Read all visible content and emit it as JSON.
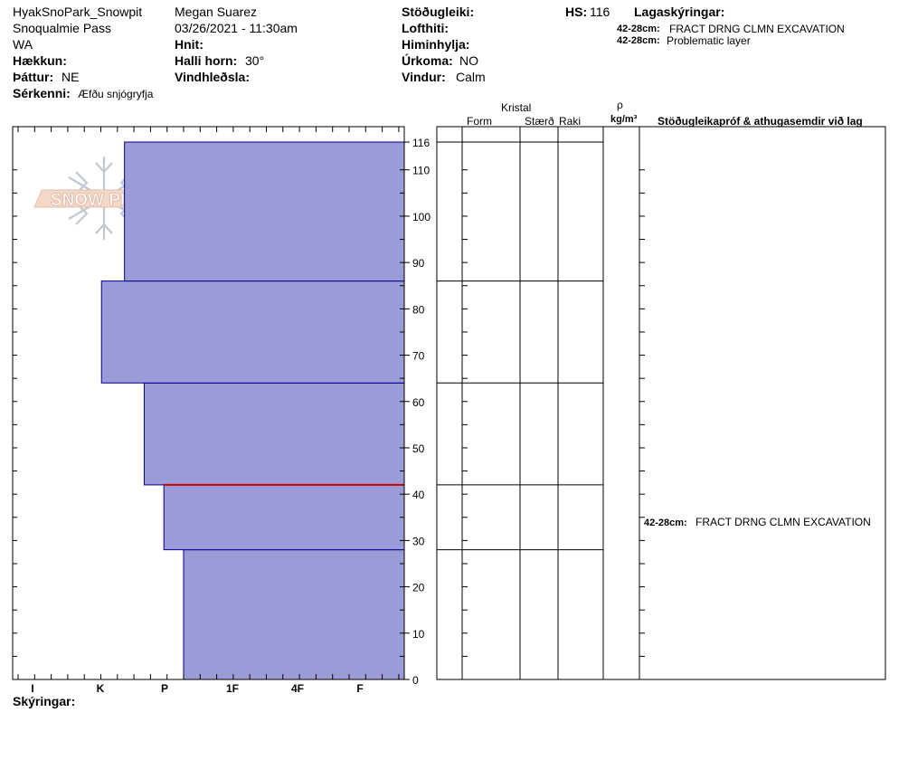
{
  "header": {
    "col1": [
      "HyakSnoPark_Snowpit",
      "Snoqualmie Pass",
      "WA"
    ],
    "elevation_label": "Hækkun:",
    "aspect_label": "Þáttur:",
    "aspect_value": "NE",
    "specifics_label": "Sérkenni:",
    "specifics_value": "Æfðu snjógryfja",
    "observer": "Megan Suarez",
    "datetime": "03/26/2021 - 11:30am",
    "coords_label": "Hnit:",
    "slope_label": "Halli horn:",
    "slope_value": "30°",
    "wind_loading_label": "Vindhleðsla:",
    "stability_label": "Stöðugleiki:",
    "air_temp_label": "Lofthiti:",
    "sky_label": "Himinhylja:",
    "precip_label": "Úrkoma:",
    "precip_value": "NO",
    "wind_label": "Vindur:",
    "wind_value": "Calm",
    "hs_label": "HS:",
    "hs_value": "116",
    "layer_notes_label": "Lagaskýringar:",
    "layer_notes": [
      {
        "range": "42-28cm:",
        "text": "FRACT DRNG CLMN EXCAVATION"
      },
      {
        "range": "42-28cm:",
        "text": "Problematic layer"
      }
    ]
  },
  "logo": {
    "text": "SNOW PILOT"
  },
  "columns": {
    "crystal": "Kristal",
    "form": "Form",
    "size": "Stærð",
    "moisture": "Raki",
    "rho": "ρ",
    "density_unit": "kg/m³",
    "tests": "Stöðugleikapróf & athugasemdir við lag"
  },
  "test_annotation": {
    "range": "42-28cm:",
    "text": "FRACT DRNG CLMN EXCAVATION"
  },
  "footer": {
    "notes_label": "Skýringar:"
  },
  "colors": {
    "layer_fill": "#9b9bd7",
    "layer_stroke": "#00008b",
    "problem_line": "#cc0000"
  },
  "chart_data": {
    "type": "bar",
    "orientation": "horizontal",
    "xlabel": "",
    "ylabel": "",
    "hardness_categories": [
      "I",
      "K",
      "P",
      "1F",
      "4F",
      "F"
    ],
    "hardness_axis_direction": "reversed",
    "yticks": [
      0,
      10,
      20,
      30,
      40,
      50,
      60,
      70,
      80,
      90,
      100,
      110,
      116
    ],
    "ylim": [
      0,
      116
    ],
    "layers": [
      {
        "bottom": 0,
        "top": 28,
        "hardness_index": 2.3
      },
      {
        "bottom": 28,
        "top": 42,
        "hardness_index": 2.0
      },
      {
        "bottom": 42,
        "top": 64,
        "hardness_index": 1.7
      },
      {
        "bottom": 64,
        "top": 86,
        "hardness_index": 1.05
      },
      {
        "bottom": 86,
        "top": 116,
        "hardness_index": 1.4
      }
    ],
    "problem_layer_depth": 42
  }
}
